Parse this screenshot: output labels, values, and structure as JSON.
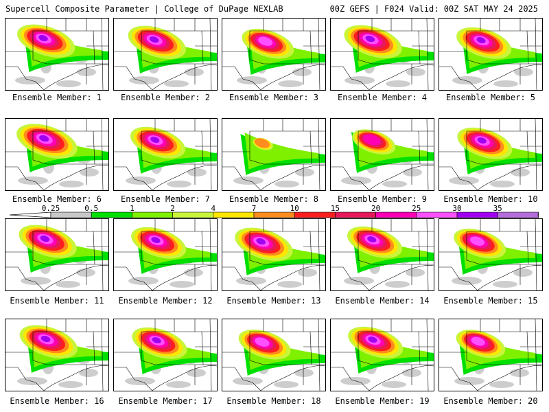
{
  "header": {
    "left": "Supercell Composite Parameter | College of DuPage NEXLAB",
    "right": "00Z GEFS | F024 Valid: 00Z SAT MAY 24 2025"
  },
  "colorbar": {
    "labels": [
      "0.25",
      "0.5",
      "1",
      "2",
      "4",
      "7",
      "10",
      "15",
      "20",
      "25",
      "30",
      "35"
    ],
    "colors": [
      "#c8c8c8",
      "#00e000",
      "#7ef000",
      "#c8f53c",
      "#ffe600",
      "#ff8c1e",
      "#ff1e1e",
      "#e6195a",
      "#ff00b4",
      "#ff50ff",
      "#a000f0",
      "#b46edc",
      "#00e6f0"
    ]
  },
  "panels": [
    {
      "caption": "Ensemble Member: 1",
      "intensity": 0.95
    },
    {
      "caption": "Ensemble Member: 2",
      "intensity": 0.95
    },
    {
      "caption": "Ensemble Member: 3",
      "intensity": 0.85
    },
    {
      "caption": "Ensemble Member: 4",
      "intensity": 0.95
    },
    {
      "caption": "Ensemble Member: 5",
      "intensity": 0.9
    },
    {
      "caption": "Ensemble Member: 6",
      "intensity": 1.0
    },
    {
      "caption": "Ensemble Member: 7",
      "intensity": 0.9
    },
    {
      "caption": "Ensemble Member: 8",
      "intensity": 0.3
    },
    {
      "caption": "Ensemble Member: 9",
      "intensity": 0.7
    },
    {
      "caption": "Ensemble Member: 10",
      "intensity": 0.9
    },
    {
      "caption": "Ensemble Member: 11",
      "intensity": 0.95
    },
    {
      "caption": "Ensemble Member: 12",
      "intensity": 0.9
    },
    {
      "caption": "Ensemble Member: 13",
      "intensity": 0.95
    },
    {
      "caption": "Ensemble Member: 14",
      "intensity": 0.9
    },
    {
      "caption": "Ensemble Member: 15",
      "intensity": 0.85
    },
    {
      "caption": "Ensemble Member: 16",
      "intensity": 0.95
    },
    {
      "caption": "Ensemble Member: 17",
      "intensity": 0.9
    },
    {
      "caption": "Ensemble Member: 18",
      "intensity": 0.85
    },
    {
      "caption": "Ensemble Member: 19",
      "intensity": 0.9
    },
    {
      "caption": "Ensemble Member: 20",
      "intensity": 0.8
    }
  ]
}
